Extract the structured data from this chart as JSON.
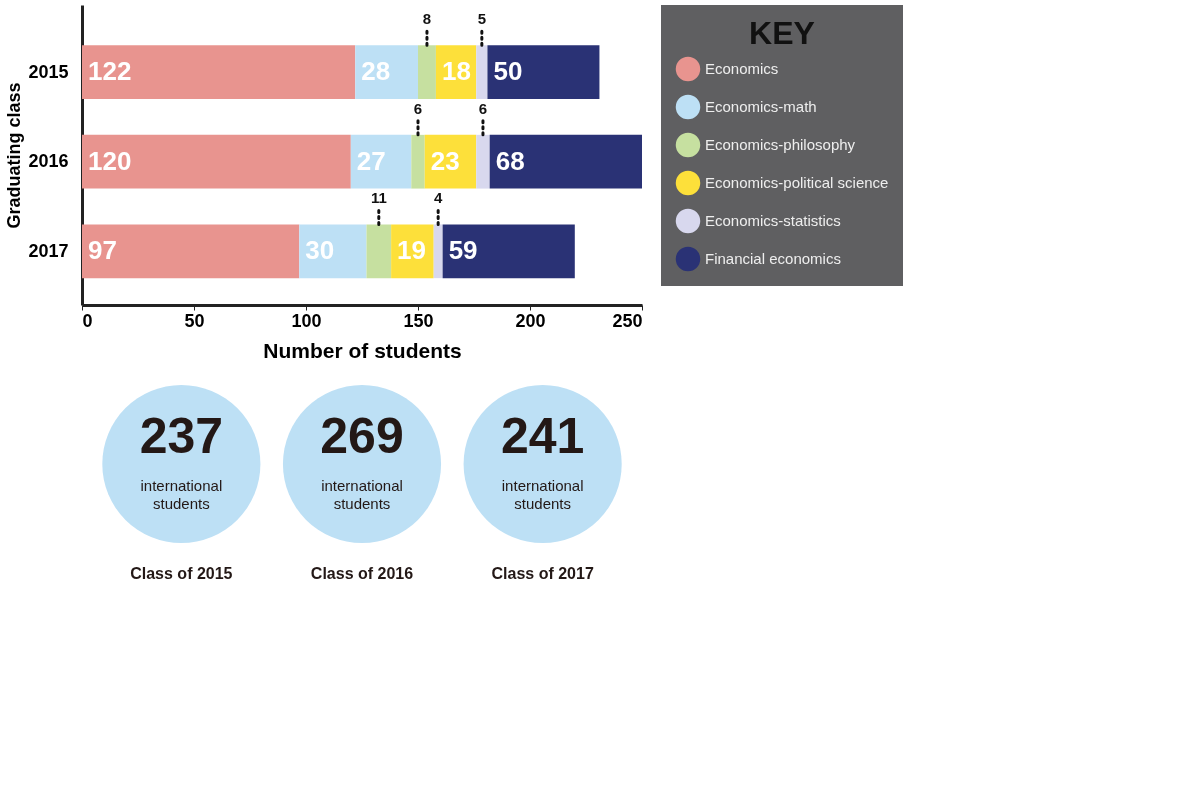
{
  "chart_data": [
    {
      "type": "bar",
      "orientation": "horizontal",
      "stacked": true,
      "categories": [
        "2015",
        "2016",
        "2017"
      ],
      "series": [
        {
          "name": "Economics",
          "color": "#e8948f",
          "values": [
            122,
            120,
            97
          ]
        },
        {
          "name": "Economics-math",
          "color": "#bde0f5",
          "values": [
            28,
            27,
            30
          ]
        },
        {
          "name": "Economics-philosophy",
          "color": "#c6e0a0",
          "values": [
            8,
            6,
            11
          ]
        },
        {
          "name": "Economics-political science",
          "color": "#fde03a",
          "values": [
            18,
            23,
            19
          ]
        },
        {
          "name": "Economics-statistics",
          "color": "#d8d8ee",
          "values": [
            5,
            6,
            4
          ]
        },
        {
          "name": "Financial economics",
          "color": "#2a3275",
          "values": [
            50,
            68,
            59
          ]
        }
      ],
      "xlim": [
        0,
        250
      ],
      "xticks": [
        0,
        50,
        100,
        150,
        200,
        250
      ],
      "xlabel": "Number of students",
      "ylabel": "Graduating class",
      "legend_title": "KEY",
      "legend": "right",
      "data_labels": true,
      "grid": false
    },
    {
      "type": "other",
      "categories": [
        "Class of 2015",
        "Class of 2016",
        "Class of 2017"
      ],
      "values": [
        237,
        269,
        241
      ],
      "color": "#bde0f5",
      "data_labels": true,
      "annotations": [
        "international students",
        "international students",
        "international students"
      ]
    }
  ]
}
